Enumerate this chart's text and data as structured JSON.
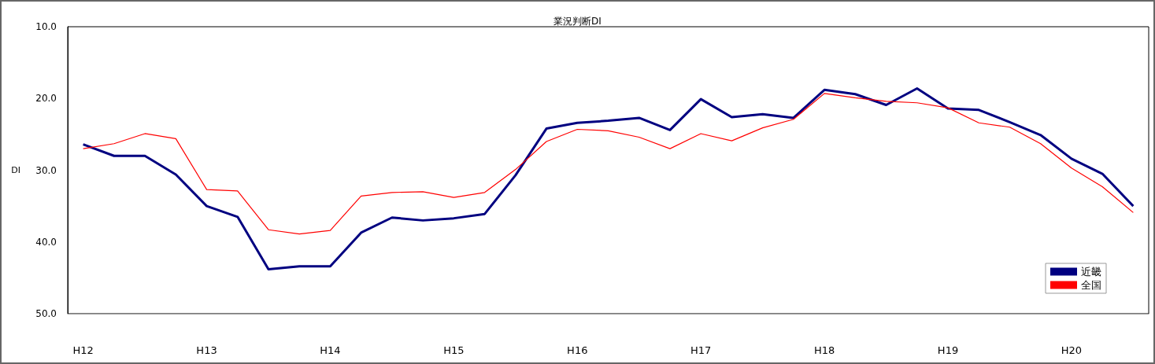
{
  "chart_data": {
    "type": "line",
    "title": "業況判断DI",
    "ylabel": "DI",
    "categories": [
      "H12",
      null,
      null,
      null,
      "H13",
      null,
      null,
      null,
      "H14",
      null,
      null,
      null,
      "H15",
      null,
      null,
      null,
      "H16",
      null,
      null,
      null,
      "H17",
      null,
      null,
      null,
      "H18",
      null,
      null,
      null,
      "H19",
      null,
      null,
      null,
      "H20",
      null,
      null
    ],
    "series": [
      {
        "name": "近畿",
        "color": "#000080",
        "values": [
          26.4,
          28.0,
          28.0,
          30.6,
          35.0,
          36.5,
          43.8,
          43.4,
          43.4,
          38.7,
          36.6,
          37.0,
          36.7,
          36.1,
          30.7,
          24.2,
          23.4,
          23.1,
          22.7,
          24.4,
          20.1,
          22.6,
          22.2,
          22.7,
          18.8,
          19.4,
          20.9,
          18.6,
          21.4,
          21.6,
          23.3,
          25.1,
          28.4,
          30.5,
          35.0
        ]
      },
      {
        "name": "全国",
        "color": "#ff0000",
        "values": [
          27.0,
          26.3,
          24.9,
          25.6,
          32.7,
          32.9,
          38.3,
          38.9,
          38.4,
          33.6,
          33.1,
          33.0,
          33.8,
          33.1,
          29.9,
          26.0,
          24.3,
          24.5,
          25.4,
          27.0,
          24.9,
          25.9,
          24.1,
          22.9,
          19.3,
          19.9,
          20.4,
          20.6,
          21.3,
          23.4,
          24.0,
          26.3,
          29.7,
          32.3,
          35.9
        ]
      }
    ],
    "ylim": [
      50,
      10
    ],
    "yticks": [
      {
        "value": 10,
        "label": "10.0"
      },
      {
        "value": 20,
        "label": "20.0"
      },
      {
        "value": 30,
        "label": "30.0"
      },
      {
        "value": 40,
        "label": "40.0"
      },
      {
        "value": 50,
        "label": "50.0"
      }
    ],
    "grid": false,
    "legend": "bottom right",
    "marker": "none",
    "line_style": "solid"
  }
}
